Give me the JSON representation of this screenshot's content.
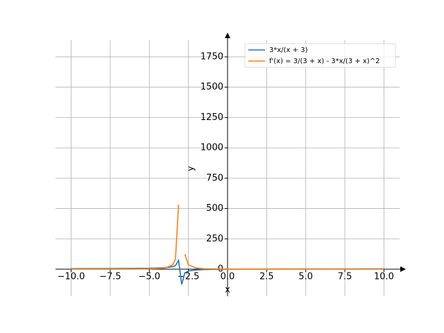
{
  "chart_data": {
    "type": "line",
    "x_label": "x",
    "y_label": "y",
    "x": [
      -10,
      -8,
      -6,
      -5,
      -4,
      -3.5,
      -3.33,
      -3.13,
      -2.93,
      -2.73,
      -2.5,
      -2,
      -1.5,
      -1,
      0,
      2,
      4,
      6,
      8,
      10
    ],
    "series": [
      {
        "name": "3*x/(x + 3)",
        "color": "#1f77b4",
        "values": [
          4.29,
          4.8,
          6,
          7.5,
          12,
          21,
          30.3,
          72.2,
          -125.6,
          -30.3,
          -15,
          -6,
          -3,
          -1.5,
          0,
          1.2,
          1.71,
          2,
          2.18,
          2.31
        ]
      },
      {
        "name": "f'(x) = 3/(3 + x) - 3*x/(3 + x)^2",
        "color": "#ff7f0e",
        "values": [
          0.18,
          0.36,
          1,
          2.25,
          9,
          36,
          82.6,
          532,
          null,
          123,
          36,
          9,
          4,
          2.25,
          1,
          0.36,
          0.18,
          0.11,
          0.07,
          0.05
        ]
      }
    ],
    "xlim": [
      -11,
      11
    ],
    "ylim": [
      -223,
      1887
    ],
    "xticks": [
      {
        "value": -10,
        "label": "−10.0"
      },
      {
        "value": -7.5,
        "label": "−7.5"
      },
      {
        "value": -5,
        "label": "−5.0"
      },
      {
        "value": -2.5,
        "label": "−2.5"
      },
      {
        "value": 0,
        "label": "0.0"
      },
      {
        "value": 2.5,
        "label": "2.5"
      },
      {
        "value": 5,
        "label": "5.0"
      },
      {
        "value": 7.5,
        "label": "7.5"
      },
      {
        "value": 10,
        "label": "10.0"
      }
    ],
    "yticks": [
      0,
      250,
      500,
      750,
      1000,
      1250,
      1500,
      1750
    ],
    "grid": true,
    "legend": "upper right"
  }
}
